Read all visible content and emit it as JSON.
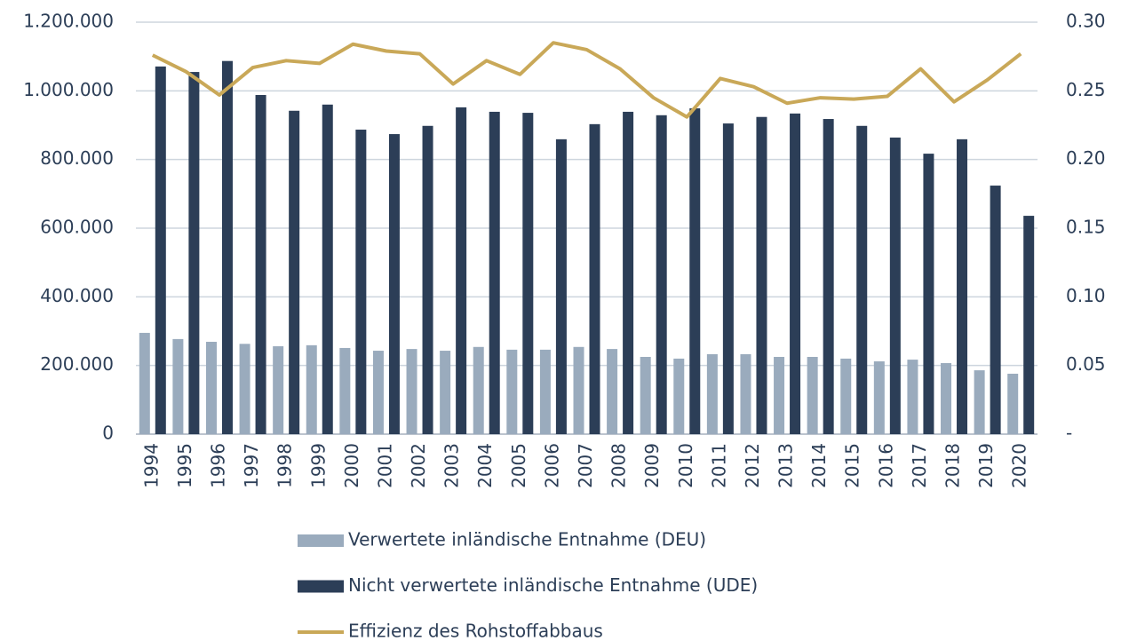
{
  "chart_data": {
    "type": "bar",
    "categories": [
      "1994",
      "1995",
      "1996",
      "1997",
      "1998",
      "1999",
      "2000",
      "2001",
      "2002",
      "2003",
      "2004",
      "2005",
      "2006",
      "2007",
      "2008",
      "2009",
      "2010",
      "2011",
      "2012",
      "2013",
      "2014",
      "2015",
      "2016",
      "2017",
      "2018",
      "2019",
      "2020"
    ],
    "series": [
      {
        "name": "Verwertete inländische Entnahme (DEU)",
        "type": "bar",
        "color": "#9aabbd",
        "values": [
          295000,
          277000,
          269000,
          263000,
          256000,
          259000,
          251000,
          243000,
          248000,
          243000,
          254000,
          246000,
          246000,
          254000,
          248000,
          225000,
          220000,
          233000,
          233000,
          225000,
          225000,
          220000,
          212000,
          217000,
          207000,
          186000,
          176000
        ]
      },
      {
        "name": "Nicht verwertete inländische Entnahme (UDE)",
        "type": "bar",
        "color": "#2c3e57",
        "values": [
          1071000,
          1055000,
          1087000,
          988000,
          942000,
          960000,
          887000,
          874000,
          898000,
          952000,
          939000,
          936000,
          859000,
          903000,
          939000,
          929000,
          949000,
          905000,
          924000,
          934000,
          918000,
          898000,
          864000,
          817000,
          859000,
          724000,
          636000
        ]
      },
      {
        "name": "Effizienz des Rohstoffabbaus",
        "type": "line",
        "axis": "y2",
        "color": "#c9a858",
        "values": [
          0.276,
          0.264,
          0.247,
          0.267,
          0.272,
          0.27,
          0.284,
          0.279,
          0.277,
          0.255,
          0.272,
          0.262,
          0.285,
          0.28,
          0.266,
          0.245,
          0.231,
          0.259,
          0.253,
          0.241,
          0.245,
          0.244,
          0.246,
          0.266,
          0.242,
          0.258,
          0.277
        ]
      }
    ],
    "ylim": [
      0,
      1200000
    ],
    "yticks": [
      0,
      {
        "value": 200000,
        "label": "200.000"
      },
      {
        "value": 400000,
        "label": "400.000"
      },
      {
        "value": 600000,
        "label": "600.000"
      },
      {
        "value": 800000,
        "label": "800.000"
      },
      {
        "value": 1000000,
        "label": "1.000.000"
      },
      {
        "value": 1200000,
        "label": "1.200.000"
      }
    ],
    "y2lim": [
      0,
      0.3
    ],
    "y2ticks": [
      {
        "value": 0,
        "label": "-"
      },
      {
        "value": 0.05,
        "label": "0.05"
      },
      {
        "value": 0.1,
        "label": "0.10"
      },
      {
        "value": 0.15,
        "label": "0.15"
      },
      {
        "value": 0.2,
        "label": "0.20"
      },
      {
        "value": 0.25,
        "label": "0.25"
      },
      {
        "value": 0.3,
        "label": "0.30"
      }
    ],
    "grid": true,
    "legend": "bottom"
  }
}
